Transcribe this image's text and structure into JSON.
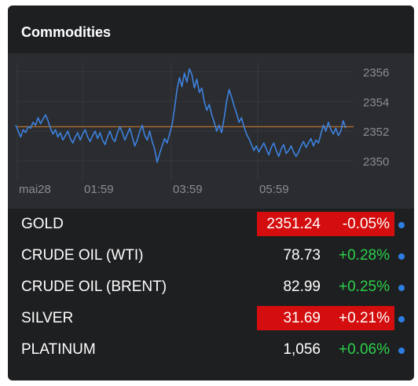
{
  "widget": {
    "title": "Commodities"
  },
  "chart_data": {
    "type": "line",
    "title": "",
    "xlabel": "",
    "ylabel": "",
    "x_tick_labels": [
      "mai28",
      "01:59",
      "03:59",
      "05:59"
    ],
    "y_tick_labels": [
      "2356",
      "2354",
      "2352",
      "2350"
    ],
    "y_ticks": [
      2356,
      2354,
      2352,
      2350
    ],
    "ylim": [
      2349.0,
      2356.6
    ],
    "reference_line": 2352.3,
    "grid": true,
    "series": [
      {
        "values": [
          2352.4,
          2352.0,
          2351.6,
          2352.1,
          2351.9,
          2352.3,
          2352.2,
          2352.6,
          2352.4,
          2352.9,
          2352.5,
          2352.8,
          2353.1,
          2352.7,
          2352.2,
          2351.8,
          2352.1,
          2351.6,
          2351.9,
          2351.4,
          2351.7,
          2352.0,
          2351.5,
          2351.2,
          2351.6,
          2351.9,
          2351.4,
          2351.8,
          2352.1,
          2351.6,
          2351.3,
          2351.7,
          2352.0,
          2351.5,
          2351.9,
          2351.4,
          2351.1,
          2351.6,
          2352.0,
          2351.5,
          2351.3,
          2351.9,
          2352.3,
          2351.9,
          2351.4,
          2351.8,
          2352.2,
          2351.6,
          2351.0,
          2351.4,
          2352.0,
          2352.4,
          2351.7,
          2351.4,
          2352.0,
          2351.3,
          2350.8,
          2349.9,
          2350.5,
          2351.0,
          2351.5,
          2351.2,
          2351.8,
          2352.4,
          2353.5,
          2354.8,
          2355.6,
          2355.0,
          2355.9,
          2355.3,
          2356.2,
          2355.8,
          2354.9,
          2355.5,
          2354.6,
          2354.9,
          2354.0,
          2353.4,
          2353.8,
          2353.1,
          2352.6,
          2352.0,
          2352.4,
          2351.9,
          2352.9,
          2354.0,
          2354.8,
          2354.3,
          2353.7,
          2353.2,
          2352.6,
          2352.9,
          2352.3,
          2351.8,
          2351.5,
          2351.1,
          2350.7,
          2351.0,
          2350.6,
          2350.9,
          2351.2,
          2350.8,
          2350.4,
          2350.9,
          2351.2,
          2350.7,
          2350.3,
          2350.8,
          2351.1,
          2350.5,
          2350.7,
          2351.0,
          2350.6,
          2350.3,
          2350.6,
          2351.0,
          2351.3,
          2350.9,
          2351.2,
          2351.5,
          2351.0,
          2351.4,
          2351.2,
          2351.8,
          2352.4,
          2352.0,
          2352.6,
          2352.1,
          2351.8,
          2352.2,
          2351.7,
          2352.0,
          2352.7,
          2352.2
        ]
      }
    ]
  },
  "colors": {
    "line": "#3d82e0",
    "reference_line": "#a8692e",
    "alert_bg": "#d40e0e",
    "positive": "#2bd14a",
    "dot": "#2e7de1"
  },
  "commodities": [
    {
      "name": "GOLD",
      "price": "2351.24",
      "change": "-0.05%",
      "highlight": true
    },
    {
      "name": "CRUDE OIL (WTI)",
      "price": "78.73",
      "change": "+0.28%",
      "highlight": false
    },
    {
      "name": "CRUDE OIL (BRENT)",
      "price": "82.99",
      "change": "+0.25%",
      "highlight": false
    },
    {
      "name": "SILVER",
      "price": "31.69",
      "change": "+0.21%",
      "highlight": true
    },
    {
      "name": "PLATINUM",
      "price": "1,056",
      "change": "+0.06%",
      "highlight": false
    }
  ]
}
